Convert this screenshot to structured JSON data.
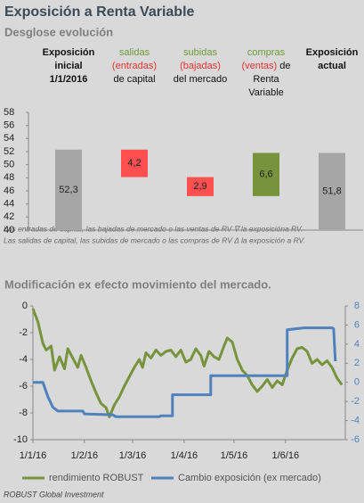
{
  "title": "Exposición a Renta Variable",
  "subtitle": "Desglose evolución",
  "notes": [
    "Las entradas de capital, las bajadas de mercado o las ventas de RV ∇ la exposicióna RV.",
    "Las salidas de capital, las subidas de mercado o las compras de RV Δ la exposición a RV."
  ],
  "footer": "ROBUST Global Investment",
  "chart_data": [
    {
      "type": "waterfall",
      "categories": [
        [
          [
            {
              "text": "Exposición",
              "bold": true
            }
          ],
          [
            {
              "text": "inicial",
              "bold": true
            }
          ],
          [
            {
              "text": "1/1/2016",
              "bold": true
            }
          ]
        ],
        [
          [
            {
              "text": "salidas",
              "color": "#6f9a3a"
            }
          ],
          [
            {
              "text": "(entradas)",
              "color": "#e8312f"
            }
          ],
          [
            {
              "text": "de capital"
            }
          ]
        ],
        [
          [
            {
              "text": "subidas",
              "color": "#6f9a3a"
            }
          ],
          [
            {
              "text": "(bajadas)",
              "color": "#e8312f"
            }
          ],
          [
            {
              "text": "del mercado"
            }
          ]
        ],
        [
          [
            {
              "text": "compras",
              "color": "#6f9a3a"
            }
          ],
          [
            {
              "text": "(ventas)",
              "color": "#e8312f"
            },
            {
              "text": " de"
            }
          ],
          [
            {
              "text": "Renta"
            }
          ],
          [
            {
              "text": "Variable"
            }
          ]
        ],
        [
          [
            {
              "text": "Exposición",
              "bold": true
            }
          ],
          [
            {
              "text": "actual",
              "bold": true
            }
          ]
        ]
      ],
      "values": [
        52.3,
        4.2,
        2.9,
        6.6,
        51.8
      ],
      "value_labels": [
        "52,3",
        "4,2",
        "2,9",
        "6,6",
        "51,8"
      ],
      "kinds": [
        "total",
        "decrease",
        "decrease",
        "increase",
        "total"
      ],
      "colors": [
        "#a6a6a6",
        "#ff4f4f",
        "#ff4f4f",
        "#77933c",
        "#a6a6a6"
      ],
      "ylim": [
        40,
        58
      ],
      "yticks": [
        40,
        42,
        44,
        46,
        48,
        50,
        52,
        54,
        56,
        58
      ],
      "grid": false
    },
    {
      "type": "line",
      "title": "Modificación ex efecto movimiento del mercado.",
      "xlim": [
        "2016-01-01",
        "2016-07-07"
      ],
      "xticks": [
        {
          "value": "2016-01-01",
          "label": "1/1/16"
        },
        {
          "value": "2016-02-01",
          "label": "1/2/16"
        },
        {
          "value": "2016-03-01",
          "label": "1/3/16"
        },
        {
          "value": "2016-04-01",
          "label": "1/4/16"
        },
        {
          "value": "2016-05-01",
          "label": "1/5/16"
        },
        {
          "value": "2016-06-01",
          "label": "1/6/16"
        }
      ],
      "ylim": [
        -10,
        0
      ],
      "yticks": [
        0,
        -2,
        -4,
        -6,
        -8,
        -10
      ],
      "y2lim": [
        -6,
        8
      ],
      "y2ticks": [
        8,
        6,
        4,
        2,
        0,
        -2,
        -4,
        -6
      ],
      "grid": false,
      "legend": "bottom",
      "series": [
        {
          "name": "rendimiento ROBUST",
          "color": "#77933c",
          "x": [
            "2016-01-01",
            "2016-01-04",
            "2016-01-07",
            "2016-01-09",
            "2016-01-12",
            "2016-01-14",
            "2016-01-17",
            "2016-01-20",
            "2016-01-22",
            "2016-01-25",
            "2016-01-28",
            "2016-01-30",
            "2016-02-02",
            "2016-02-05",
            "2016-02-08",
            "2016-02-11",
            "2016-02-14",
            "2016-02-16",
            "2016-02-19",
            "2016-02-22",
            "2016-02-25",
            "2016-02-28",
            "2016-03-02",
            "2016-03-05",
            "2016-03-07",
            "2016-03-09",
            "2016-03-12",
            "2016-03-15",
            "2016-03-18",
            "2016-03-21",
            "2016-03-24",
            "2016-03-27",
            "2016-03-30",
            "2016-04-02",
            "2016-04-05",
            "2016-04-08",
            "2016-04-11",
            "2016-04-13",
            "2016-04-16",
            "2016-04-19",
            "2016-04-22",
            "2016-04-25",
            "2016-04-27",
            "2016-04-30",
            "2016-05-03",
            "2016-05-06",
            "2016-05-09",
            "2016-05-12",
            "2016-05-15",
            "2016-05-18",
            "2016-05-21",
            "2016-05-24",
            "2016-05-27",
            "2016-05-30",
            "2016-06-02",
            "2016-06-05",
            "2016-06-08",
            "2016-06-11",
            "2016-06-14",
            "2016-06-17",
            "2016-06-20",
            "2016-06-23",
            "2016-06-26",
            "2016-06-29",
            "2016-07-02",
            "2016-07-05"
          ],
          "values": [
            -0.2,
            -1.2,
            -2.8,
            -3.3,
            -3.0,
            -4.8,
            -3.8,
            -4.7,
            -3.2,
            -3.9,
            -4.6,
            -3.7,
            -4.6,
            -5.6,
            -6.5,
            -7.3,
            -7.6,
            -8.3,
            -7.4,
            -6.8,
            -6.0,
            -5.3,
            -4.6,
            -4.0,
            -4.6,
            -3.5,
            -3.9,
            -3.3,
            -3.7,
            -3.4,
            -3.3,
            -3.8,
            -3.3,
            -4.2,
            -4.0,
            -3.2,
            -3.7,
            -4.5,
            -3.4,
            -3.8,
            -4.0,
            -3.0,
            -2.4,
            -2.7,
            -4.0,
            -4.8,
            -5.2,
            -5.9,
            -6.4,
            -6.0,
            -5.5,
            -6.1,
            -5.6,
            -5.9,
            -4.8,
            -3.9,
            -3.2,
            -3.1,
            -3.4,
            -4.3,
            -4.0,
            -4.4,
            -4.1,
            -4.6,
            -5.4,
            -5.9
          ]
        },
        {
          "name": "Cambio exposición (ex mercado)",
          "color": "#4f81bd",
          "axis": "y2",
          "x": [
            "2016-01-01",
            "2016-01-07",
            "2016-01-10",
            "2016-01-13",
            "2016-01-16",
            "2016-01-31",
            "2016-02-01",
            "2016-02-18",
            "2016-02-20",
            "2016-03-17",
            "2016-03-18",
            "2016-03-25",
            "2016-03-25",
            "2016-04-17",
            "2016-04-17",
            "2016-06-02",
            "2016-06-02",
            "2016-06-12",
            "2016-06-29",
            "2016-06-30",
            "2016-07-01"
          ],
          "values": [
            0,
            0,
            -1.5,
            -2.6,
            -3.0,
            -3.0,
            -3.3,
            -3.4,
            -3.6,
            -3.6,
            -3.5,
            -3.5,
            -1.3,
            -1.3,
            0.7,
            0.7,
            5.5,
            5.7,
            5.7,
            5.6,
            2.2
          ]
        }
      ]
    }
  ]
}
